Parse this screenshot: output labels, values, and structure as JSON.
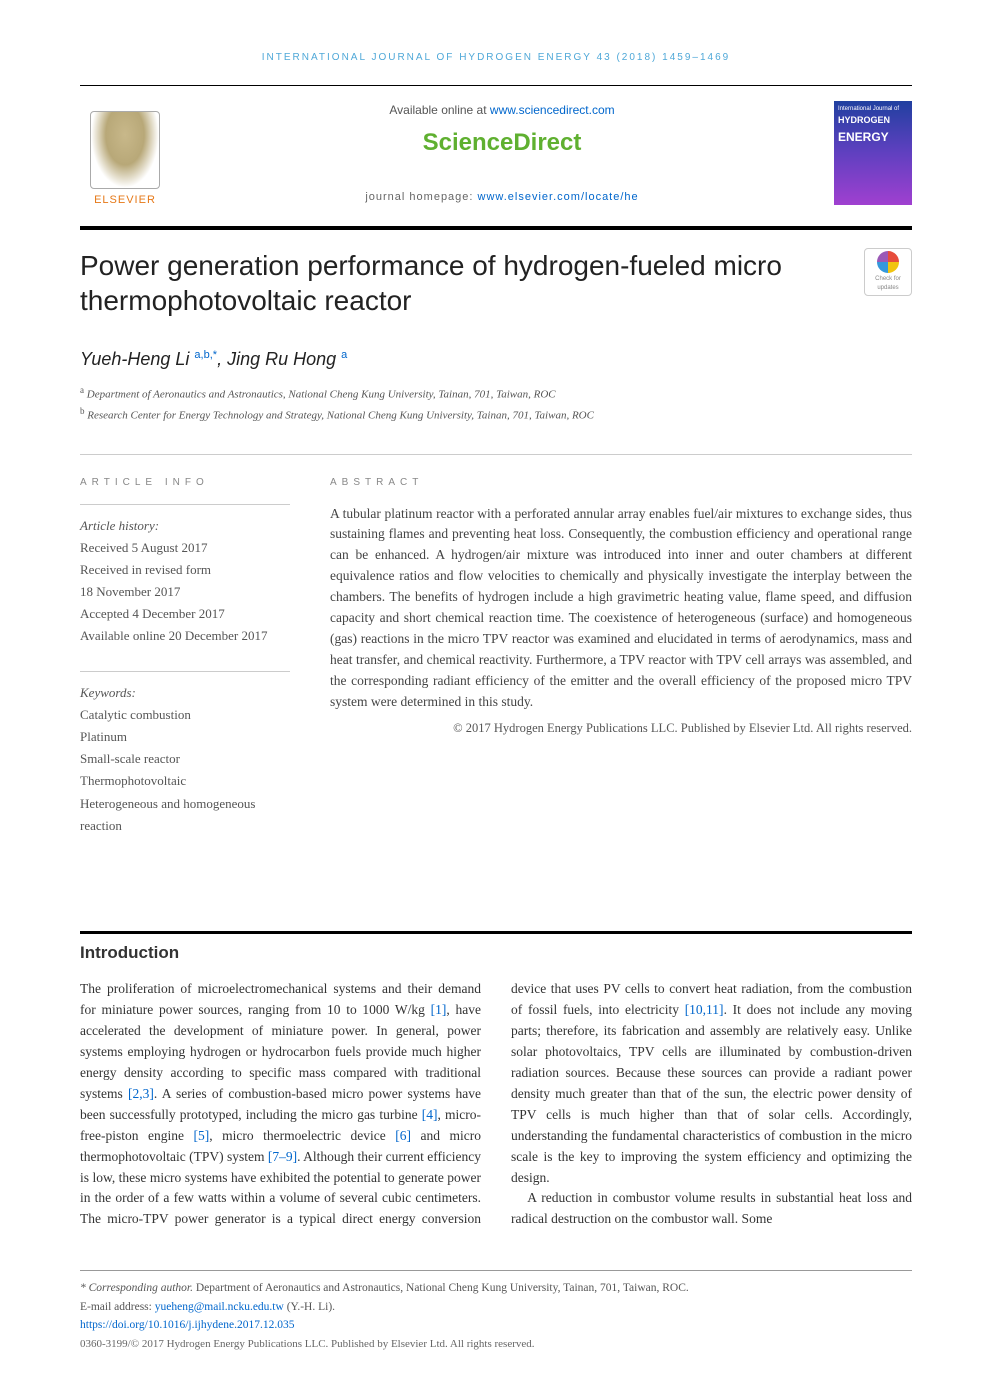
{
  "running_head": "INTERNATIONAL JOURNAL OF HYDROGEN ENERGY 43 (2018) 1459–1469",
  "header": {
    "available_prefix": "Available online at ",
    "available_url": "www.sciencedirect.com",
    "sd_logo": "ScienceDirect",
    "journal_home_label": "journal homepage: ",
    "journal_home_url": "www.elsevier.com/locate/he",
    "elsevier": "ELSEVIER",
    "cover_line1": "International Journal of",
    "cover_line2": "HYDROGEN",
    "cover_line3": "ENERGY"
  },
  "crossmark": {
    "line1": "Check for",
    "line2": "updates"
  },
  "title": "Power generation performance of hydrogen-fueled micro thermophotovoltaic reactor",
  "authors": {
    "a1_name": "Yueh-Heng Li ",
    "a1_sup": "a,b,",
    "a1_star": "*",
    "sep": ", ",
    "a2_name": "Jing Ru Hong ",
    "a2_sup": "a"
  },
  "affiliations": {
    "a": "Department of Aeronautics and Astronautics, National Cheng Kung University, Tainan, 701, Taiwan, ROC",
    "b": "Research Center for Energy Technology and Strategy, National Cheng Kung University, Tainan, 701, Taiwan, ROC"
  },
  "article_info": {
    "head": "ARTICLE INFO",
    "history_label": "Article history:",
    "received": "Received 5 August 2017",
    "revised1": "Received in revised form",
    "revised2": "18 November 2017",
    "accepted": "Accepted 4 December 2017",
    "online": "Available online 20 December 2017",
    "keywords_label": "Keywords:",
    "keywords": [
      "Catalytic combustion",
      "Platinum",
      "Small-scale reactor",
      "Thermophotovoltaic",
      "Heterogeneous and homogeneous reaction"
    ]
  },
  "abstract": {
    "head": "ABSTRACT",
    "text": "A tubular platinum reactor with a perforated annular array enables fuel/air mixtures to exchange sides, thus sustaining flames and preventing heat loss. Consequently, the combustion efficiency and operational range can be enhanced. A hydrogen/air mixture was introduced into inner and outer chambers at different equivalence ratios and flow velocities to chemically and physically investigate the interplay between the chambers. The benefits of hydrogen include a high gravimetric heating value, flame speed, and diffusion capacity and short chemical reaction time. The coexistence of heterogeneous (surface) and homogeneous (gas) reactions in the micro TPV reactor was examined and elucidated in terms of aerodynamics, mass and heat transfer, and chemical reactivity. Furthermore, a TPV reactor with TPV cell arrays was assembled, and the corresponding radiant efficiency of the emitter and the overall efficiency of the proposed micro TPV system were determined in this study.",
    "copyright": "© 2017 Hydrogen Energy Publications LLC. Published by Elsevier Ltd. All rights reserved."
  },
  "intro": {
    "title": "Introduction",
    "p1a": "The proliferation of microelectromechanical systems and their demand for miniature power sources, ranging from 10 to 1000 W/kg ",
    "r1": "[1]",
    "p1b": ", have accelerated the development of miniature power. In general, power systems employing hydrogen or hydrocarbon fuels provide much higher energy density according to specific mass compared with traditional systems ",
    "r23": "[2,3]",
    "p1c": ". A series of combustion-based micro power systems have been successfully prototyped, including the micro gas turbine ",
    "r4": "[4]",
    "p1d": ", micro-free-piston engine ",
    "r5": "[5]",
    "p1e": ", micro thermoelectric device ",
    "r6": "[6]",
    "p1f": " and micro thermophotovoltaic (TPV) system ",
    "r79": "[7–9]",
    "p1g": ". Although their current efficiency is low, these micro systems have exhibited the potential to generate power in the order of ",
    "p2a": "a few watts within a volume of several cubic centimeters. The micro-TPV power generator is a typical direct energy conversion device that uses PV cells to convert heat radiation, from the combustion of fossil fuels, into electricity ",
    "r1011": "[10,11]",
    "p2b": ". It does not include any moving parts; therefore, its fabrication and assembly are relatively easy. Unlike solar photovoltaics, TPV cells are illuminated by combustion-driven radiation sources. Because these sources can provide a radiant power density much greater than that of the sun, the electric power density of TPV cells is much higher than that of solar cells. Accordingly, understanding the fundamental characteristics of combustion in the micro scale is the key to improving the system efficiency and optimizing the design.",
    "p3": "A reduction in combustor volume results in substantial heat loss and radical destruction on the combustor wall. Some"
  },
  "footnotes": {
    "corr_label": "* Corresponding author.",
    "corr_text": " Department of Aeronautics and Astronautics, National Cheng Kung University, Tainan, 701, Taiwan, ROC.",
    "email_label": "E-mail address: ",
    "email": "yueheng@mail.ncku.edu.tw",
    "email_suffix": " (Y.-H. Li).",
    "doi": "https://doi.org/10.1016/j.ijhydene.2017.12.035",
    "issn": "0360-3199/© 2017 Hydrogen Energy Publications LLC. Published by Elsevier Ltd. All rights reserved."
  },
  "colors": {
    "link": "#0066cc",
    "sd_green": "#5fb030",
    "elsevier_orange": "#e67817",
    "head_blue": "#4fa8d8"
  }
}
